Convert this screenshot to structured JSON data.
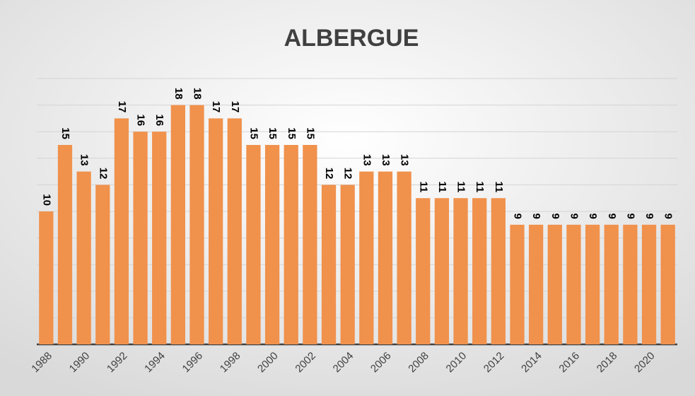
{
  "chart_data": {
    "type": "bar",
    "title": "ALBERGUE",
    "categories": [
      "1988",
      null,
      "1990",
      null,
      "1992",
      null,
      "1994",
      null,
      "1996",
      null,
      "1998",
      null,
      "2000",
      null,
      "2002",
      null,
      "2004",
      null,
      "2006",
      null,
      "2008",
      null,
      "2010",
      null,
      "2012",
      null,
      "2014",
      null,
      "2016",
      null,
      "2018",
      null,
      "2020",
      null
    ],
    "values": [
      10,
      15,
      13,
      12,
      17,
      16,
      16,
      18,
      18,
      17,
      17,
      15,
      15,
      15,
      15,
      12,
      12,
      13,
      13,
      13,
      11,
      11,
      11,
      11,
      11,
      9,
      9,
      9,
      9,
      9,
      9,
      9,
      9,
      9
    ],
    "color": "#f0914c",
    "ylim": [
      0,
      20
    ],
    "yticks": [
      0,
      2,
      4,
      6,
      8,
      10,
      12,
      14,
      16,
      18,
      20
    ],
    "grid": true
  }
}
